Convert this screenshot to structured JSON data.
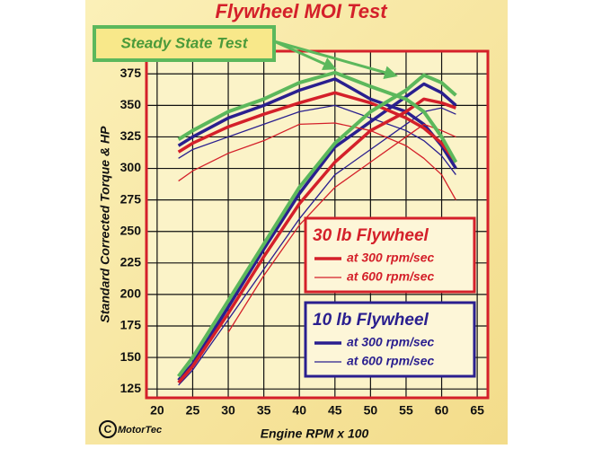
{
  "chart_data": {
    "type": "line",
    "title": "Flywheel MOI Test",
    "x_label": "Engine RPM x 100",
    "y_label": "Standard Corrected Torque & HP",
    "logo_mark": "C",
    "logo": "MotorTec",
    "xlim": [
      18.5,
      66.5
    ],
    "ylim": [
      118,
      393
    ],
    "xticks": [
      20,
      25,
      30,
      35,
      40,
      45,
      50,
      55,
      60,
      65
    ],
    "yticks": [
      125,
      150,
      175,
      200,
      225,
      250,
      275,
      300,
      325,
      350,
      375
    ],
    "grid": true,
    "x": [
      23,
      25,
      30,
      35,
      40,
      45,
      50,
      55,
      57.5,
      60,
      62
    ],
    "series": [
      {
        "name": "Steady State Test",
        "color": "#5cb85c",
        "width": 4,
        "values": [
          323,
          330,
          345,
          355,
          368,
          376,
          365,
          355,
          345,
          325,
          305
        ]
      },
      {
        "name": "Steady State Test",
        "color": "#5cb85c",
        "width": 4,
        "values": [
          135,
          150,
          195,
          240,
          285,
          320,
          345,
          362,
          374,
          368,
          358
        ]
      },
      {
        "name": "at 300 rpm/sec",
        "group": "30 lb Flywheel",
        "color": "#d4202a",
        "width": 3.5,
        "values": [
          313,
          320,
          333,
          343,
          352,
          360,
          352,
          340,
          332,
          320,
          305
        ]
      },
      {
        "name": "at 300 rpm/sec",
        "group": "30 lb Flywheel",
        "color": "#d4202a",
        "width": 3.5,
        "values": [
          130,
          143,
          185,
          230,
          272,
          305,
          330,
          345,
          355,
          352,
          348
        ]
      },
      {
        "name": "at 600 rpm/sec",
        "group": "30 lb Flywheel",
        "color": "#d4202a",
        "width": 1.3,
        "values": [
          290,
          298,
          312,
          322,
          335,
          336,
          330,
          318,
          308,
          295,
          275
        ]
      },
      {
        "name": "at 600 rpm/sec",
        "group": "30 lb Flywheel",
        "color": "#d4202a",
        "width": 1.3,
        "values": [
          null,
          null,
          170,
          215,
          255,
          285,
          305,
          325,
          335,
          330,
          325
        ]
      },
      {
        "name": "at 300 rpm/sec",
        "group": "10 lb Flywheel",
        "color": "#2a1f8f",
        "width": 3.5,
        "values": [
          318,
          325,
          340,
          350,
          362,
          371,
          355,
          345,
          335,
          318,
          300
        ]
      },
      {
        "name": "at 300 rpm/sec",
        "group": "10 lb Flywheel",
        "color": "#2a1f8f",
        "width": 3.5,
        "values": [
          132,
          145,
          190,
          236,
          280,
          317,
          337,
          357,
          367,
          360,
          350
        ]
      },
      {
        "name": "at 600 rpm/sec",
        "group": "10 lb Flywheel",
        "color": "#2a1f8f",
        "width": 1.3,
        "values": [
          308,
          315,
          325,
          335,
          345,
          350,
          340,
          330,
          322,
          310,
          295
        ]
      },
      {
        "name": "at 600 rpm/sec",
        "group": "10 lb Flywheel",
        "color": "#2a1f8f",
        "width": 1.3,
        "values": [
          128,
          140,
          180,
          220,
          260,
          295,
          315,
          335,
          345,
          348,
          343
        ]
      }
    ]
  }
}
